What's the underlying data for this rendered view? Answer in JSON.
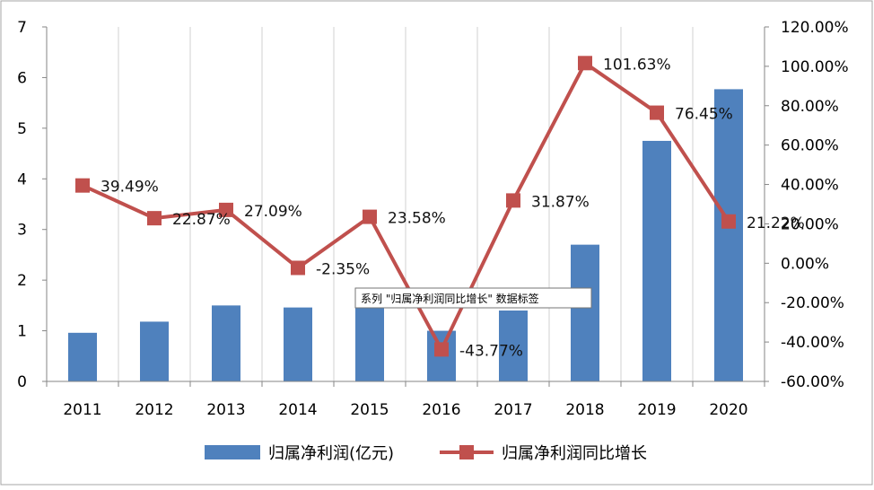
{
  "chart_data": {
    "type": "bar+line",
    "categories": [
      "2011",
      "2012",
      "2013",
      "2014",
      "2015",
      "2016",
      "2017",
      "2018",
      "2019",
      "2020"
    ],
    "series": [
      {
        "name": "归属净利润(亿元)",
        "type": "bar",
        "axis": "left",
        "color": "#4F81BD",
        "values": [
          0.96,
          1.18,
          1.5,
          1.46,
          1.6,
          1.0,
          1.4,
          2.7,
          4.75,
          5.77
        ]
      },
      {
        "name": "归属净利润同比增长",
        "type": "line",
        "axis": "right",
        "color": "#C0504D",
        "values": [
          39.49,
          22.87,
          27.09,
          -2.35,
          23.58,
          -43.77,
          31.87,
          101.63,
          76.45,
          21.22
        ],
        "labels": [
          "39.49%",
          "22.87%",
          "27.09%",
          "-2.35%",
          "23.58%",
          "-43.77%",
          "31.87%",
          "101.63%",
          "76.45%",
          "21.22%"
        ]
      }
    ],
    "y_left": {
      "min": 0,
      "max": 7,
      "ticks": [
        "0",
        "1",
        "2",
        "3",
        "4",
        "5",
        "6",
        "7"
      ]
    },
    "y_right": {
      "min": -60,
      "max": 120,
      "ticks": [
        "-60.00%",
        "-40.00%",
        "-20.00%",
        "0.00%",
        "20.00%",
        "40.00%",
        "60.00%",
        "80.00%",
        "100.00%",
        "120.00%"
      ]
    },
    "grid": "vertical",
    "legend_position": "bottom",
    "tooltip": "系列 \"归属净利润同比增长\" 数据标签"
  }
}
